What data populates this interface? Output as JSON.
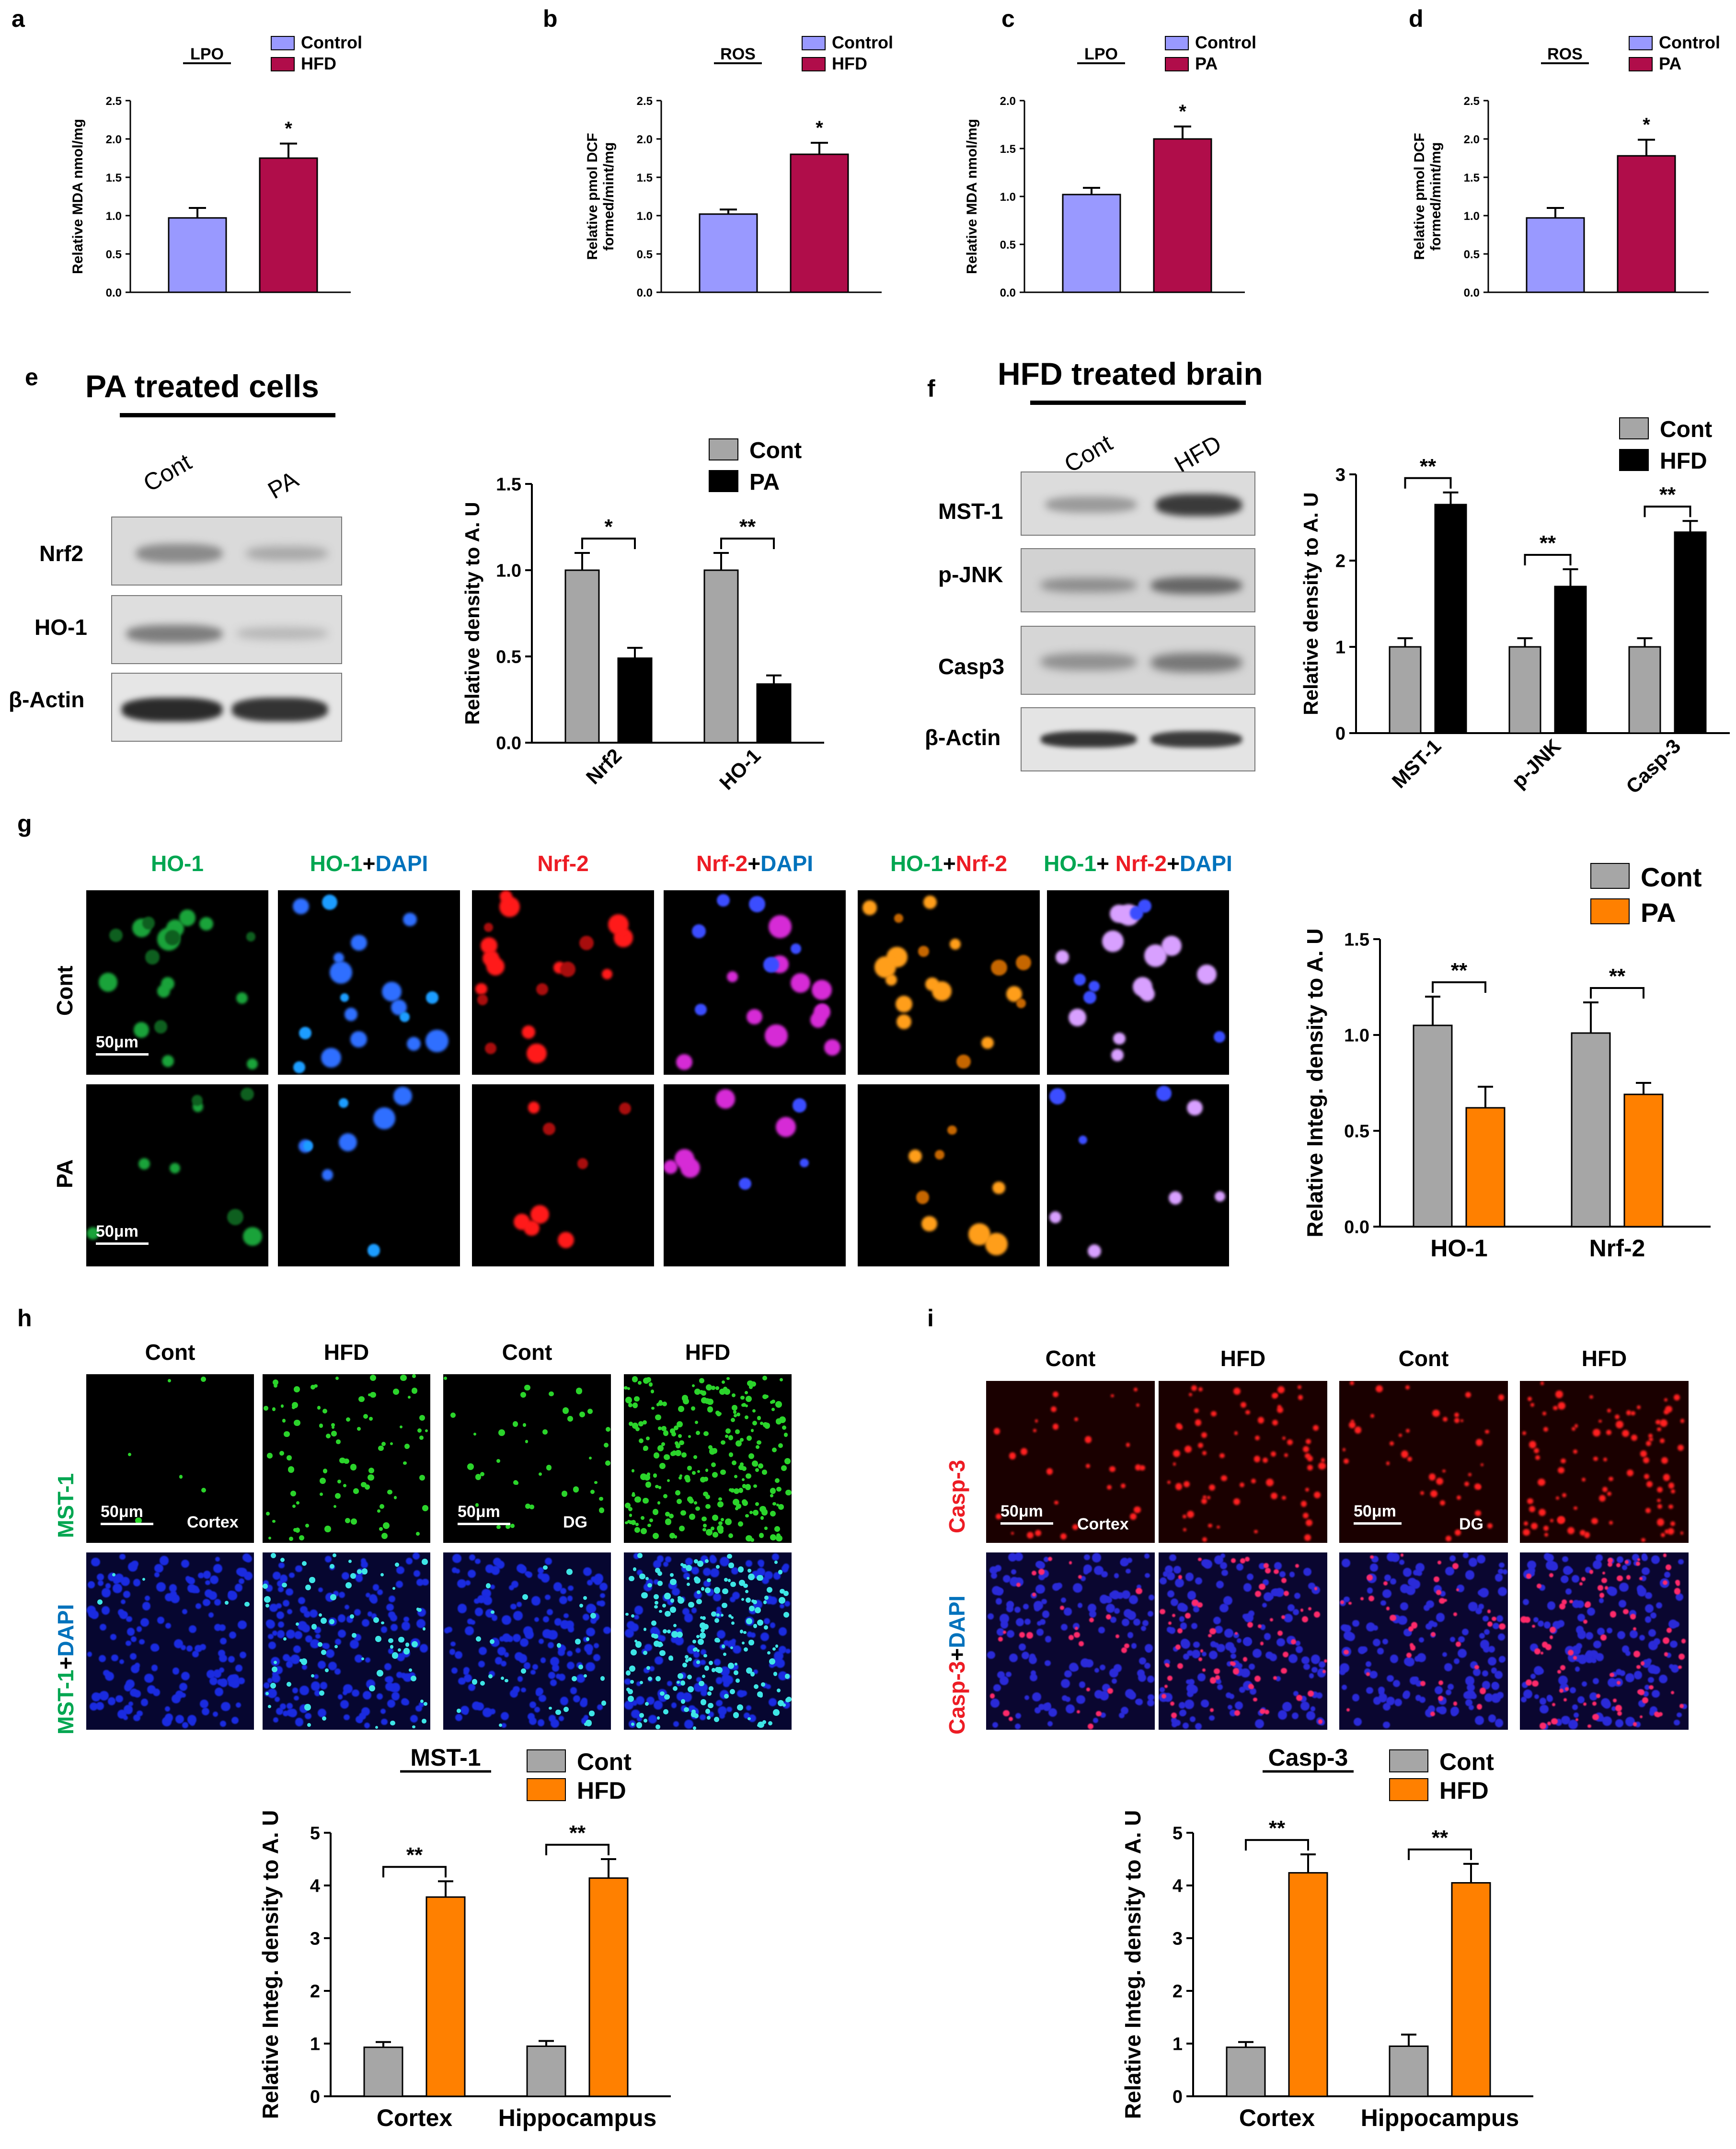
{
  "panels": {
    "a": {
      "label": "a"
    },
    "b": {
      "label": "b"
    },
    "c": {
      "label": "c"
    },
    "d": {
      "label": "d"
    },
    "e": {
      "label": "e",
      "title": "PA treated cells",
      "lanes": [
        "Cont",
        "PA"
      ],
      "rows": [
        "Nrf2",
        "HO-1",
        "β-Actin"
      ]
    },
    "f": {
      "label": "f",
      "title": "HFD treated brain",
      "lanes": [
        "Cont",
        "HFD"
      ],
      "rows": [
        "MST-1",
        "p-JNK",
        "Casp3",
        "β-Actin"
      ]
    },
    "g": {
      "label": "g",
      "columns": [
        [
          {
            "t": "HO-1",
            "c": "#00a651"
          }
        ],
        [
          {
            "t": "HO-1",
            "c": "#00a651"
          },
          {
            "t": "+",
            "c": "#000000"
          },
          {
            "t": "DAPI",
            "c": "#0072bc"
          }
        ],
        [
          {
            "t": "Nrf-2",
            "c": "#ed1c24"
          }
        ],
        [
          {
            "t": "Nrf-2",
            "c": "#ed1c24"
          },
          {
            "t": "+",
            "c": "#000000"
          },
          {
            "t": "DAPI",
            "c": "#0072bc"
          }
        ],
        [
          {
            "t": "HO-1",
            "c": "#00a651"
          },
          {
            "t": "+",
            "c": "#000000"
          },
          {
            "t": "Nrf-2",
            "c": "#ed1c24"
          }
        ],
        [
          {
            "t": "HO-1",
            "c": "#00a651"
          },
          {
            "t": "+ ",
            "c": "#000000"
          },
          {
            "t": "Nrf-2",
            "c": "#ed1c24"
          },
          {
            "t": "+",
            "c": "#000000"
          },
          {
            "t": "DAPI",
            "c": "#0072bc"
          }
        ]
      ],
      "rows": [
        "Cont",
        "PA"
      ],
      "scale": "50μm"
    },
    "h": {
      "label": "h",
      "columns": [
        "Cont",
        "HFD",
        "Cont",
        "HFD"
      ],
      "row1": "MST-1",
      "row2": [
        {
          "t": "MST-1",
          "c": "#00a651"
        },
        {
          "t": "+",
          "c": "#000000"
        },
        {
          "t": "DAPI",
          "c": "#0072bc"
        }
      ],
      "regions": [
        "Cortex",
        "DG"
      ],
      "scale": "50μm"
    },
    "i": {
      "label": "i",
      "columns": [
        "Cont",
        "HFD",
        "Cont",
        "HFD"
      ],
      "row1": "Casp-3",
      "row2": [
        {
          "t": "Casp-3",
          "c": "#ed1c24"
        },
        {
          "t": "+",
          "c": "#000000"
        },
        {
          "t": "DAPI",
          "c": "#0072bc"
        }
      ],
      "regions": [
        "Cortex",
        "DG"
      ],
      "scale": "50μm"
    }
  },
  "chart_data": [
    {
      "id": "a",
      "type": "bar",
      "title": "LPO",
      "categories": [
        "Control",
        "HFD"
      ],
      "values": [
        0.97,
        1.75
      ],
      "errors": [
        0.13,
        0.19
      ],
      "colors": [
        "#9999ff",
        "#b00d4a"
      ],
      "ylabel": [
        "Relative MDA nmol/mg"
      ],
      "ylim": [
        0,
        2.5
      ],
      "yticks": [
        "0.0",
        "0.5",
        "1.0",
        "1.5",
        "2.0",
        "2.5"
      ],
      "sig": "*",
      "legend": [
        "Control",
        "HFD"
      ]
    },
    {
      "id": "b",
      "type": "bar",
      "title": "ROS",
      "categories": [
        "Control",
        "HFD"
      ],
      "values": [
        1.02,
        1.8
      ],
      "errors": [
        0.06,
        0.15
      ],
      "colors": [
        "#9999ff",
        "#b00d4a"
      ],
      "ylabel": [
        "Relative pmol DCF",
        "formed/mint/mg"
      ],
      "ylim": [
        0,
        2.5
      ],
      "yticks": [
        "0.0",
        "0.5",
        "1.0",
        "1.5",
        "2.0",
        "2.5"
      ],
      "sig": "*",
      "legend": [
        "Control",
        "HFD"
      ]
    },
    {
      "id": "c",
      "type": "bar",
      "title": "LPO",
      "categories": [
        "Control",
        "PA"
      ],
      "values": [
        1.02,
        1.6
      ],
      "errors": [
        0.07,
        0.13
      ],
      "colors": [
        "#9999ff",
        "#b00d4a"
      ],
      "ylabel": [
        "Relative MDA nmol/mg"
      ],
      "ylim": [
        0,
        2.0
      ],
      "yticks": [
        "0.0",
        "0.5",
        "1.0",
        "1.5",
        "2.0"
      ],
      "sig": "*",
      "legend": [
        "Control",
        "PA"
      ]
    },
    {
      "id": "d",
      "type": "bar",
      "title": "ROS",
      "categories": [
        "Control",
        "PA"
      ],
      "values": [
        0.97,
        1.78
      ],
      "errors": [
        0.13,
        0.21
      ],
      "colors": [
        "#9999ff",
        "#b00d4a"
      ],
      "ylabel": [
        "Relative pmol DCF",
        "formed/mint/mg"
      ],
      "ylim": [
        0,
        2.5
      ],
      "yticks": [
        "0.0",
        "0.5",
        "1.0",
        "1.5",
        "2.0",
        "2.5"
      ],
      "sig": "*",
      "legend": [
        "Control",
        "PA"
      ]
    },
    {
      "id": "e",
      "type": "bar",
      "categories": [
        "Nrf2",
        "HO-1"
      ],
      "series": [
        {
          "name": "Cont",
          "color": "#a6a6a6",
          "values": [
            1.0,
            1.0
          ],
          "errors": [
            0.1,
            0.1
          ]
        },
        {
          "name": "PA",
          "color": "#000000",
          "values": [
            0.49,
            0.34
          ],
          "errors": [
            0.06,
            0.05
          ]
        }
      ],
      "ylabel": [
        "Relative density to A. U"
      ],
      "ylim": [
        0,
        1.5
      ],
      "yticks": [
        "0.0",
        "0.5",
        "1.0",
        "1.5"
      ],
      "sig": [
        "*",
        "**"
      ]
    },
    {
      "id": "f",
      "type": "bar",
      "categories": [
        "MST-1",
        "p-JNK",
        "Casp-3"
      ],
      "series": [
        {
          "name": "Cont",
          "color": "#a6a6a6",
          "values": [
            1.0,
            1.0,
            1.0
          ],
          "errors": [
            0.1,
            0.1,
            0.1
          ]
        },
        {
          "name": "HFD",
          "color": "#000000",
          "values": [
            2.65,
            1.7,
            2.33
          ],
          "errors": [
            0.14,
            0.2,
            0.13
          ]
        }
      ],
      "ylabel": [
        "Relative density to A. U"
      ],
      "ylim": [
        0,
        3
      ],
      "yticks": [
        "0",
        "1",
        "2",
        "3"
      ],
      "sig": [
        "**",
        "**",
        "**"
      ]
    },
    {
      "id": "g",
      "type": "bar",
      "categories": [
        "HO-1",
        "Nrf-2"
      ],
      "series": [
        {
          "name": "Cont",
          "color": "#a6a6a6",
          "values": [
            1.05,
            1.01
          ],
          "errors": [
            0.15,
            0.16
          ]
        },
        {
          "name": "PA",
          "color": "#ff8000",
          "values": [
            0.62,
            0.69
          ],
          "errors": [
            0.11,
            0.06
          ]
        }
      ],
      "ylabel": [
        "Relative Integ. density to A. U"
      ],
      "ylim": [
        0,
        1.5
      ],
      "yticks": [
        "0.0",
        "0.5",
        "1.0",
        "1.5"
      ],
      "sig": [
        "**",
        "**"
      ]
    },
    {
      "id": "h",
      "type": "bar",
      "title": "MST-1",
      "categories": [
        "Cortex",
        "Hippocampus"
      ],
      "series": [
        {
          "name": "Cont",
          "color": "#a6a6a6",
          "values": [
            0.93,
            0.95
          ],
          "errors": [
            0.1,
            0.1
          ]
        },
        {
          "name": "HFD",
          "color": "#ff8000",
          "values": [
            3.78,
            4.14
          ],
          "errors": [
            0.3,
            0.36
          ]
        }
      ],
      "ylabel": [
        "Relative Integ. density to A. U"
      ],
      "ylim": [
        0,
        5
      ],
      "yticks": [
        "0",
        "1",
        "2",
        "3",
        "4",
        "5"
      ],
      "sig": [
        "**",
        "**"
      ]
    },
    {
      "id": "i",
      "type": "bar",
      "title": "Casp-3",
      "categories": [
        "Cortex",
        "Hippocampus"
      ],
      "series": [
        {
          "name": "Cont",
          "color": "#a6a6a6",
          "values": [
            0.93,
            0.95
          ],
          "errors": [
            0.1,
            0.22
          ]
        },
        {
          "name": "HFD",
          "color": "#ff8000",
          "values": [
            4.24,
            4.05
          ],
          "errors": [
            0.35,
            0.36
          ]
        }
      ],
      "ylabel": [
        "Relative Integ. density to A. U"
      ],
      "ylim": [
        0,
        5
      ],
      "yticks": [
        "0",
        "1",
        "2",
        "3",
        "4",
        "5"
      ],
      "sig": [
        "**",
        "**"
      ]
    }
  ]
}
